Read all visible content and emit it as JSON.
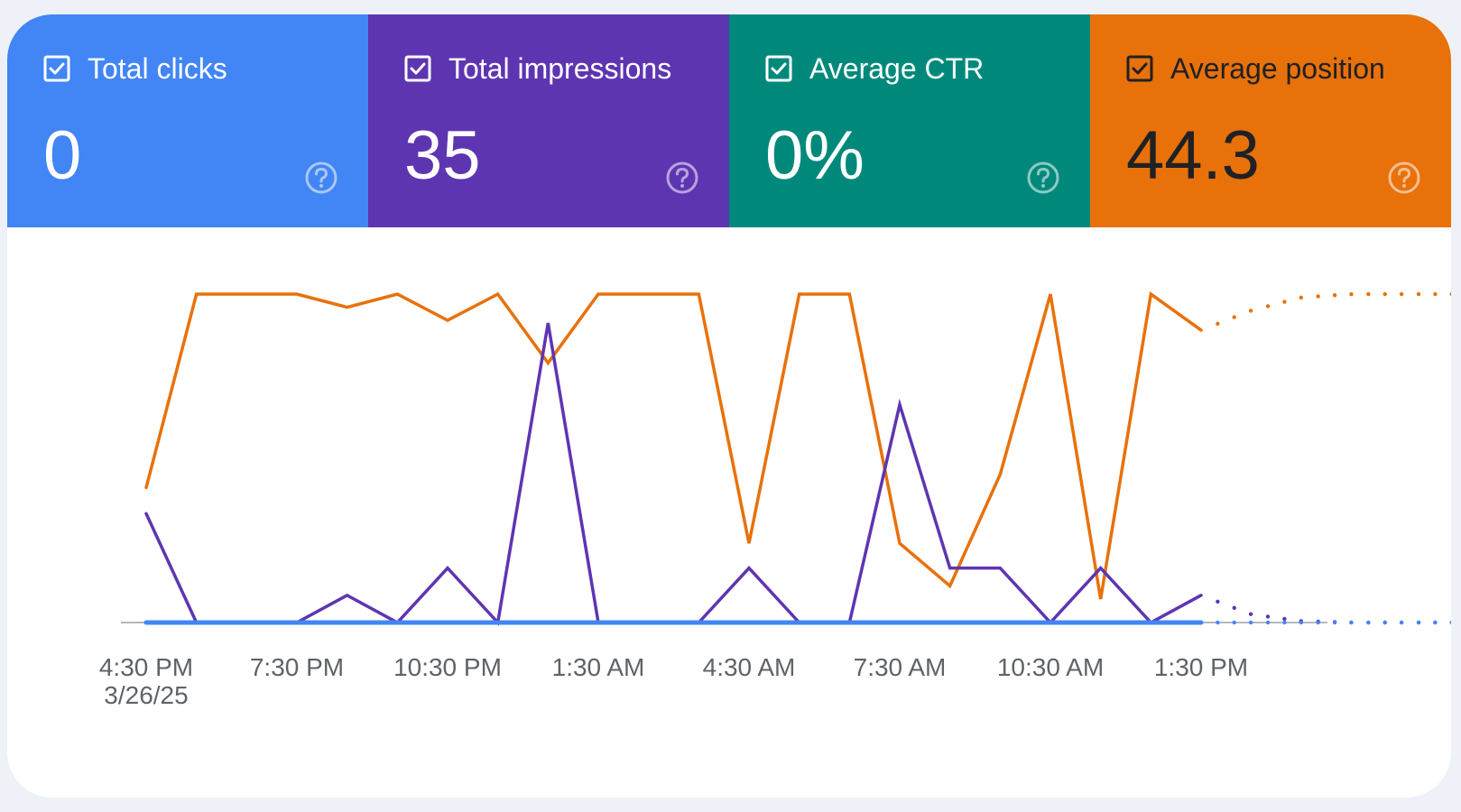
{
  "metrics": [
    {
      "label": "Total clicks",
      "value": "0",
      "checked": true,
      "bg": "#4285f4",
      "fg": "#ffffff",
      "help_icon": "help-circle-icon"
    },
    {
      "label": "Total impressions",
      "value": "35",
      "checked": true,
      "bg": "#5e35b1",
      "fg": "#ffffff",
      "help_icon": "help-circle-icon"
    },
    {
      "label": "Average CTR",
      "value": "0%",
      "checked": true,
      "bg": "#00897b",
      "fg": "#ffffff",
      "help_icon": "help-circle-icon"
    },
    {
      "label": "Average position",
      "value": "44.3",
      "checked": true,
      "bg": "#e8710a",
      "fg": "#202124",
      "help_icon": "help-circle-icon"
    }
  ],
  "chart_data": {
    "type": "line",
    "x_ticks": [
      {
        "line1": "4:30 PM",
        "line2": "3/26/25"
      },
      {
        "line1": "7:30 PM",
        "line2": ""
      },
      {
        "line1": "10:30 PM",
        "line2": ""
      },
      {
        "line1": "1:30 AM",
        "line2": ""
      },
      {
        "line1": "4:30 AM",
        "line2": ""
      },
      {
        "line1": "7:30 AM",
        "line2": ""
      },
      {
        "line1": "10:30 AM",
        "line2": ""
      },
      {
        "line1": "1:30 PM",
        "line2": ""
      }
    ],
    "points_per_tick": 3,
    "solid_points": 22,
    "grid": false,
    "baseline_color": "#9aa0a6",
    "series": [
      {
        "color": "#e8710a",
        "scale": "position",
        "values": [
          60,
          1,
          1,
          1,
          5,
          1,
          9,
          1,
          22,
          1,
          1,
          1,
          77,
          1,
          1,
          77,
          90,
          56,
          1,
          94,
          1,
          12,
          6,
          2,
          1,
          1,
          1
        ]
      },
      {
        "color": "#5e35b1",
        "scale": "impressions",
        "values": [
          4,
          0,
          0,
          0,
          1,
          0,
          2,
          0,
          11,
          0,
          0,
          0,
          2,
          0,
          0,
          8,
          2,
          2,
          0,
          2,
          0,
          1,
          0.3,
          0.05,
          0,
          0,
          0
        ]
      },
      {
        "color": "#4285f4",
        "scale": "clicks",
        "values": [
          0,
          0,
          0,
          0,
          0,
          0,
          0,
          0,
          0,
          0,
          0,
          0,
          0,
          0,
          0,
          0,
          0,
          0,
          0,
          0,
          0,
          0,
          0,
          0,
          0,
          0,
          0
        ]
      }
    ]
  }
}
